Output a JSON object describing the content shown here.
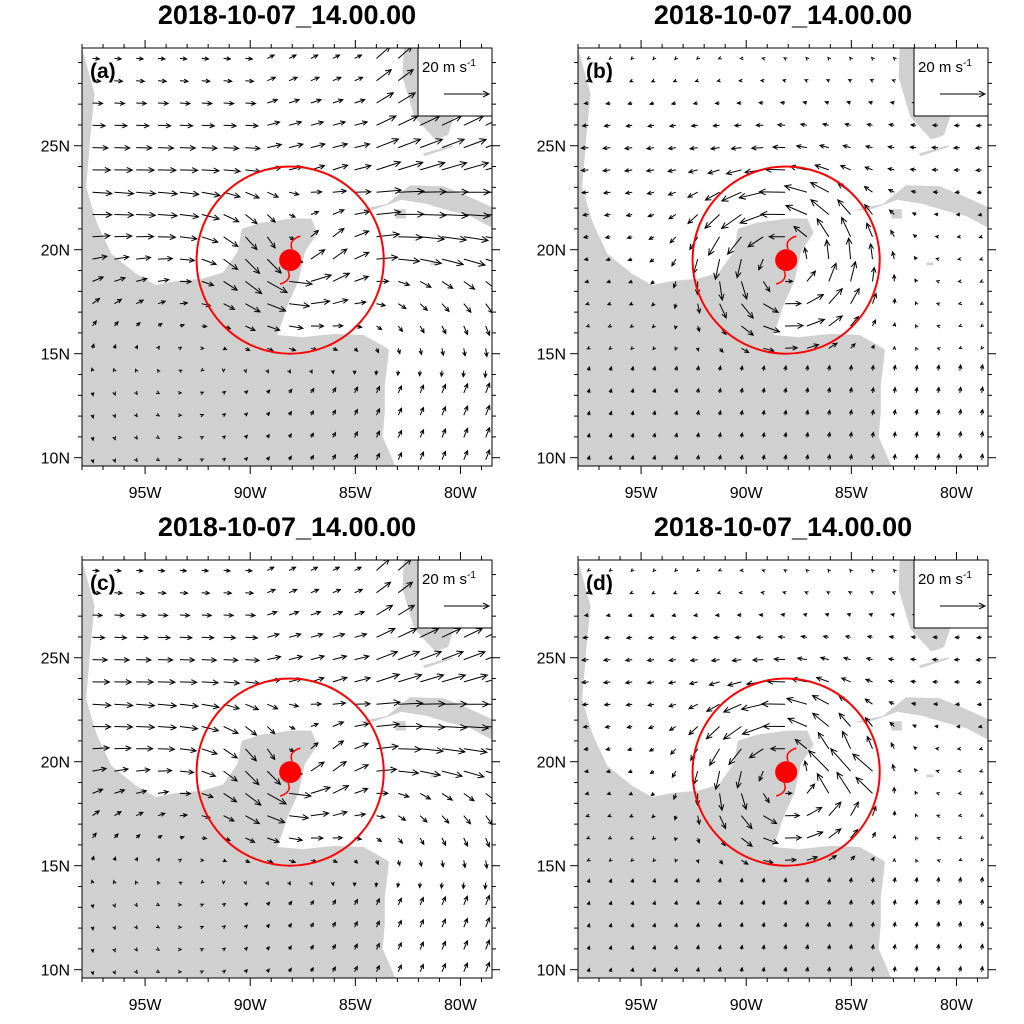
{
  "figure": {
    "panels": [
      {
        "letter": "(a)",
        "title": "2018-10-07_14.00.00",
        "variant": "a"
      },
      {
        "letter": "(b)",
        "title": "2018-10-07_14.00.00",
        "variant": "b"
      },
      {
        "letter": "(c)",
        "title": "2018-10-07_14.00.00",
        "variant": "c"
      },
      {
        "letter": "(d)",
        "title": "2018-10-07_14.00.00",
        "variant": "d"
      }
    ],
    "reference_vector": {
      "value": "20",
      "unit": "m s",
      "exponent": "-1"
    },
    "lon_ticks": [
      {
        "lon": -95,
        "label": "95W"
      },
      {
        "lon": -90,
        "label": "90W"
      },
      {
        "lon": -85,
        "label": "85W"
      },
      {
        "lon": -80,
        "label": "80W"
      }
    ],
    "lat_ticks": [
      {
        "lat": 10,
        "label": "10N"
      },
      {
        "lat": 15,
        "label": "15N"
      },
      {
        "lat": 20,
        "label": "20N"
      },
      {
        "lat": 25,
        "label": "25N"
      }
    ],
    "lon_range": [
      -98,
      -78.5
    ],
    "lat_range": [
      9.6,
      29.7
    ],
    "storm_center": {
      "lon": -88.1,
      "lat": 19.5
    },
    "circle_radius_deg": 4.5,
    "colors": {
      "land": "#d0d0d0",
      "storm": "#ff0000",
      "vector": "#000000",
      "frame": "#000000"
    }
  }
}
